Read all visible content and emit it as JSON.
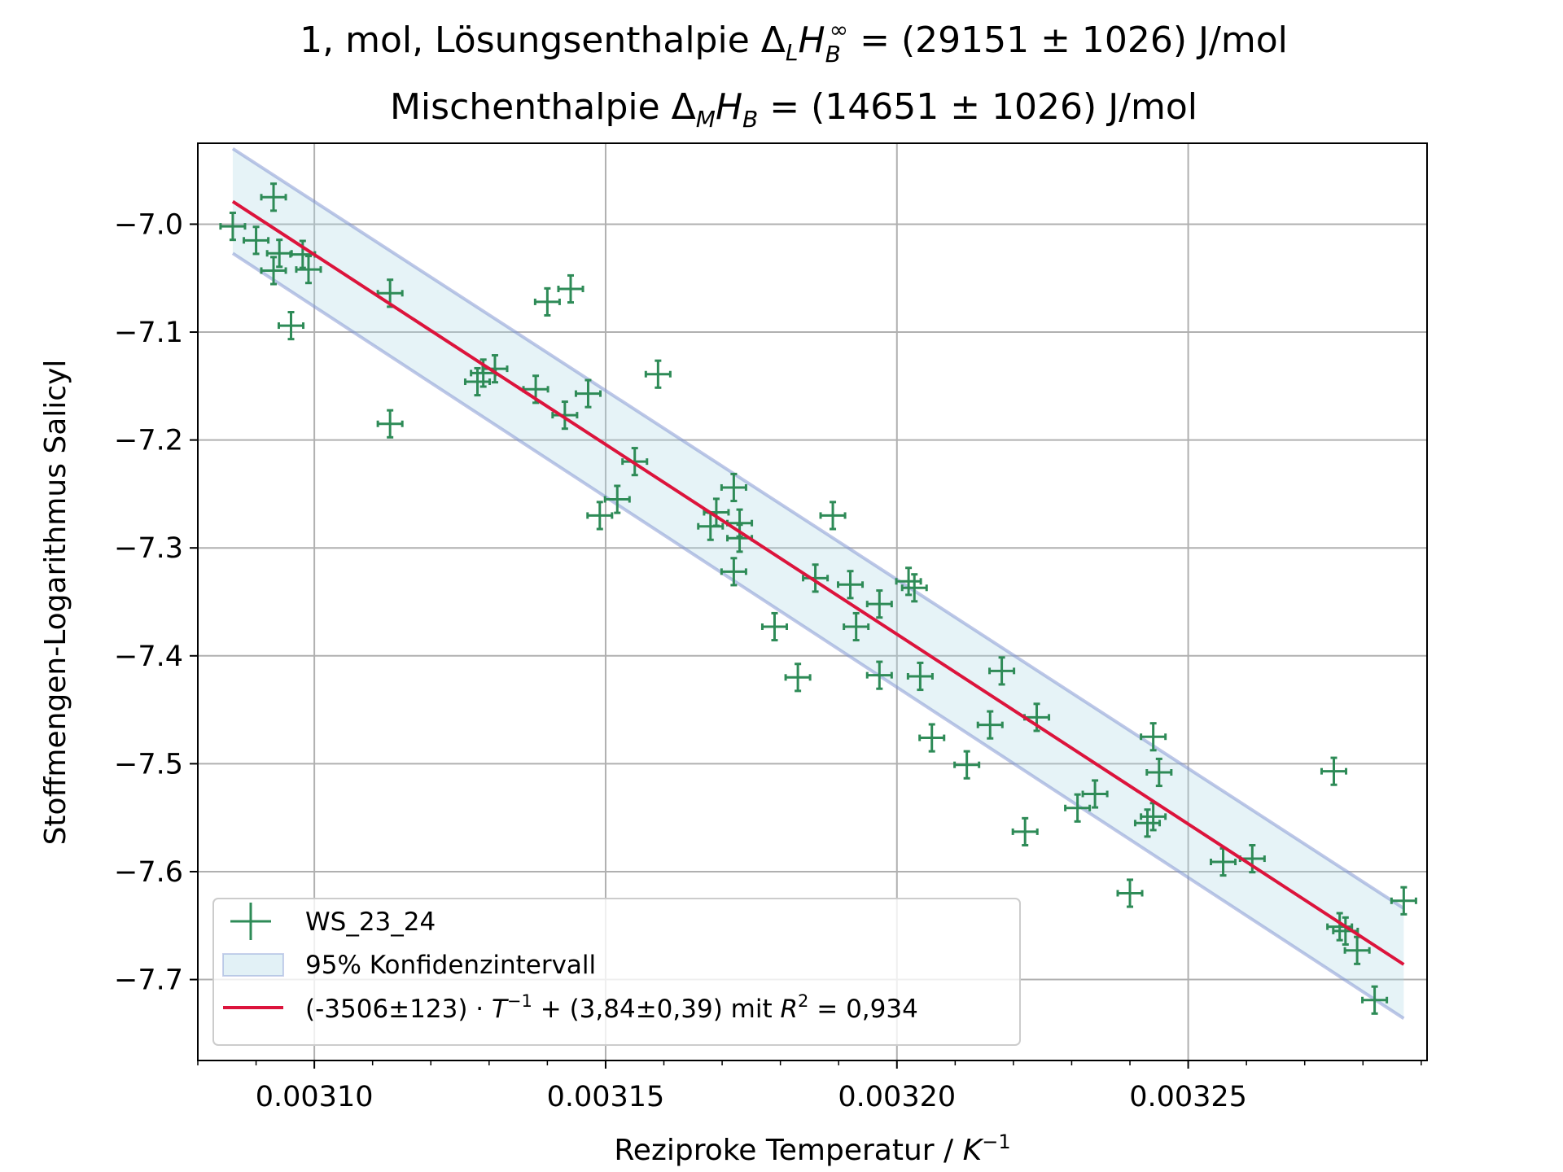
{
  "chart_data": {
    "type": "scatter",
    "title_line1": {
      "prefix": "1, mol, Lösungsenthalpie Δ",
      "sub1": "L",
      "italic": "H",
      "sub2": "B",
      "sup": "∞",
      "suffix": " = (29151 ± 1026) J/mol"
    },
    "title_line2": {
      "prefix": "Mischenthalpie Δ",
      "sub1": "M",
      "italic": "H",
      "sub2": "B",
      "suffix": " =  (14651 ± 1026) J/mol"
    },
    "xlabel": {
      "text": "Reziproke Temperatur / ",
      "italic": "K",
      "sup": "−1"
    },
    "ylabel": "Stoffmengen-Logarithmus Salicyl",
    "xlim": [
      0.00308,
      0.003291
    ],
    "ylim": [
      -7.775,
      -6.925
    ],
    "x_ticks": [
      {
        "value": 0.0031,
        "label": "0.00310"
      },
      {
        "value": 0.00315,
        "label": "0.00315"
      },
      {
        "value": 0.0032,
        "label": "0.00320"
      },
      {
        "value": 0.00325,
        "label": "0.00325"
      }
    ],
    "y_ticks": [
      {
        "value": -7.0,
        "label": "−7.0"
      },
      {
        "value": -7.1,
        "label": "−7.1"
      },
      {
        "value": -7.2,
        "label": "−7.2"
      },
      {
        "value": -7.3,
        "label": "−7.3"
      },
      {
        "value": -7.4,
        "label": "−7.4"
      },
      {
        "value": -7.5,
        "label": "−7.5"
      },
      {
        "value": -7.6,
        "label": "−7.6"
      },
      {
        "value": -7.7,
        "label": "−7.7"
      }
    ],
    "x_minor_step": 1e-05,
    "grid": true,
    "legend_position": "lower-left",
    "series": [
      {
        "name": "WS_23_24",
        "kind": "errorbar",
        "color": "#2e8b57",
        "xerr": 2.1e-06,
        "yerr": 0.0125,
        "points": [
          [
            0.003086,
            -7.002
          ],
          [
            0.00309,
            -7.015
          ],
          [
            0.003093,
            -6.975
          ],
          [
            0.003093,
            -7.043
          ],
          [
            0.003094,
            -7.027
          ],
          [
            0.003096,
            -7.094
          ],
          [
            0.003098,
            -7.028
          ],
          [
            0.003099,
            -7.042
          ],
          [
            0.003113,
            -7.064
          ],
          [
            0.003113,
            -7.185
          ],
          [
            0.003128,
            -7.146
          ],
          [
            0.003129,
            -7.138
          ],
          [
            0.003131,
            -7.134
          ],
          [
            0.003138,
            -7.153
          ],
          [
            0.00314,
            -7.072
          ],
          [
            0.003143,
            -7.177
          ],
          [
            0.003144,
            -7.06
          ],
          [
            0.003147,
            -7.157
          ],
          [
            0.003149,
            -7.27
          ],
          [
            0.003152,
            -7.255
          ],
          [
            0.003155,
            -7.22
          ],
          [
            0.003159,
            -7.139
          ],
          [
            0.003168,
            -7.28
          ],
          [
            0.003169,
            -7.267
          ],
          [
            0.003172,
            -7.244
          ],
          [
            0.003172,
            -7.322
          ],
          [
            0.003173,
            -7.277
          ],
          [
            0.003173,
            -7.291
          ],
          [
            0.003179,
            -7.373
          ],
          [
            0.003183,
            -7.42
          ],
          [
            0.003186,
            -7.328
          ],
          [
            0.003189,
            -7.27
          ],
          [
            0.003192,
            -7.334
          ],
          [
            0.003193,
            -7.373
          ],
          [
            0.003197,
            -7.352
          ],
          [
            0.003197,
            -7.418
          ],
          [
            0.003202,
            -7.331
          ],
          [
            0.003203,
            -7.337
          ],
          [
            0.003204,
            -7.419
          ],
          [
            0.003206,
            -7.476
          ],
          [
            0.003212,
            -7.501
          ],
          [
            0.003216,
            -7.464
          ],
          [
            0.003218,
            -7.414
          ],
          [
            0.003222,
            -7.563
          ],
          [
            0.003224,
            -7.457
          ],
          [
            0.003231,
            -7.541
          ],
          [
            0.003234,
            -7.528
          ],
          [
            0.00324,
            -7.62
          ],
          [
            0.003243,
            -7.555
          ],
          [
            0.003244,
            -7.549
          ],
          [
            0.003244,
            -7.475
          ],
          [
            0.003245,
            -7.508
          ],
          [
            0.003256,
            -7.591
          ],
          [
            0.003261,
            -7.588
          ],
          [
            0.003275,
            -7.507
          ],
          [
            0.003276,
            -7.651
          ],
          [
            0.003277,
            -7.655
          ],
          [
            0.003279,
            -7.673
          ],
          [
            0.003282,
            -7.719
          ],
          [
            0.003287,
            -7.627
          ]
        ]
      },
      {
        "name": "95% Konfidenzintervall",
        "kind": "band",
        "color": "#add8e6",
        "edge_color": "#7b8fcf",
        "x": [
          0.003086,
          0.003287
        ],
        "upper": [
          -6.93,
          -7.634
        ],
        "lower": [
          -7.027,
          -7.736
        ]
      },
      {
        "name_prefix": "(-3506±123)",
        "name_middle": " + (3,84±0,39) mit ",
        "name_suffix": " = 0,934",
        "kind": "line",
        "color": "#dc143c",
        "x": [
          0.003086,
          0.003287
        ],
        "y": [
          -6.979,
          -7.686
        ]
      }
    ]
  }
}
